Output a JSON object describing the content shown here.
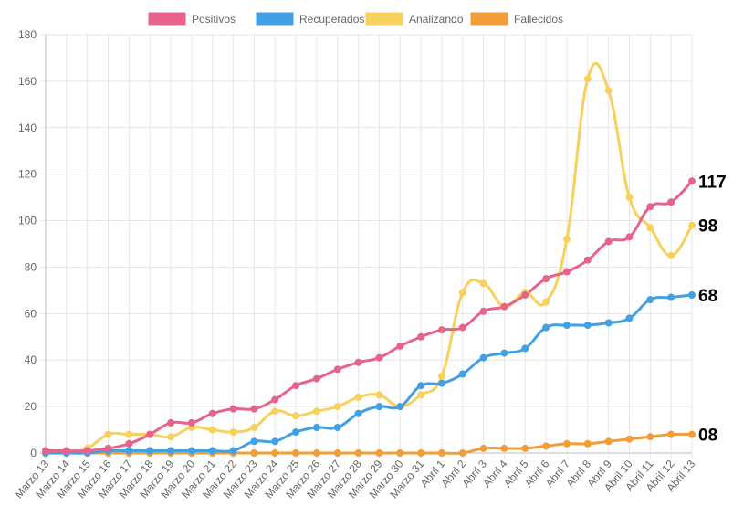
{
  "chart_data": {
    "type": "line",
    "title": "",
    "xlabel": "",
    "ylabel": "",
    "ylim": [
      0,
      180
    ],
    "yticks": [
      0,
      20,
      40,
      60,
      80,
      100,
      120,
      140,
      160,
      180
    ],
    "grid": true,
    "legend_position": "top",
    "categories": [
      "Marzo 13",
      "Marzo 14",
      "Marzo 15",
      "Marzo 16",
      "Marzo 17",
      "Marzo 18",
      "Marzo 19",
      "Marzo 20",
      "Marzo 21",
      "Marzo 22",
      "Marzo 23",
      "Marzo 24",
      "Marzo 25",
      "Marzo 26",
      "Marzo 27",
      "Marzo 28",
      "Marzo 29",
      "Marzo 30",
      "Marzo 31",
      "Abril 1",
      "Abril 2",
      "Abril 3",
      "Abril 4",
      "Abril 5",
      "Abril 6",
      "Abril 7",
      "Abril 8",
      "Abril 9",
      "Abril 10",
      "Abril 11",
      "Abril 12",
      "Abril 13"
    ],
    "series": [
      {
        "name": "Positivos",
        "color": "#e8638a",
        "values": [
          1,
          1,
          1,
          2,
          4,
          8,
          13,
          13,
          17,
          19,
          19,
          23,
          29,
          32,
          36,
          39,
          41,
          46,
          50,
          53,
          54,
          61,
          63,
          68,
          75,
          78,
          83,
          91,
          93,
          106,
          108,
          117
        ],
        "end_label": "117"
      },
      {
        "name": "Recuperados",
        "color": "#42a0e5",
        "values": [
          0,
          0,
          0,
          1,
          1,
          1,
          1,
          1,
          1,
          1,
          5,
          5,
          9,
          11,
          11,
          17,
          20,
          20,
          29,
          30,
          34,
          41,
          43,
          45,
          54,
          55,
          55,
          56,
          58,
          66,
          67,
          68
        ],
        "end_label": "68"
      },
      {
        "name": "Analizando",
        "color": "#f7d15c",
        "values": [
          0,
          0,
          2,
          8,
          8,
          8,
          7,
          11,
          10,
          9,
          11,
          18,
          16,
          18,
          20,
          24,
          25,
          20,
          25,
          33,
          69,
          73,
          63,
          69,
          65,
          92,
          161,
          156,
          110,
          97,
          85,
          98
        ],
        "end_label": "98"
      },
      {
        "name": "Fallecidos",
        "color": "#f39c3a",
        "values": [
          0,
          0,
          0,
          0,
          0,
          0,
          0,
          0,
          0,
          0,
          0,
          0,
          0,
          0,
          0,
          0,
          0,
          0,
          0,
          0,
          0,
          2,
          2,
          2,
          3,
          4,
          4,
          5,
          6,
          7,
          8,
          8
        ],
        "end_label": "08"
      }
    ]
  }
}
